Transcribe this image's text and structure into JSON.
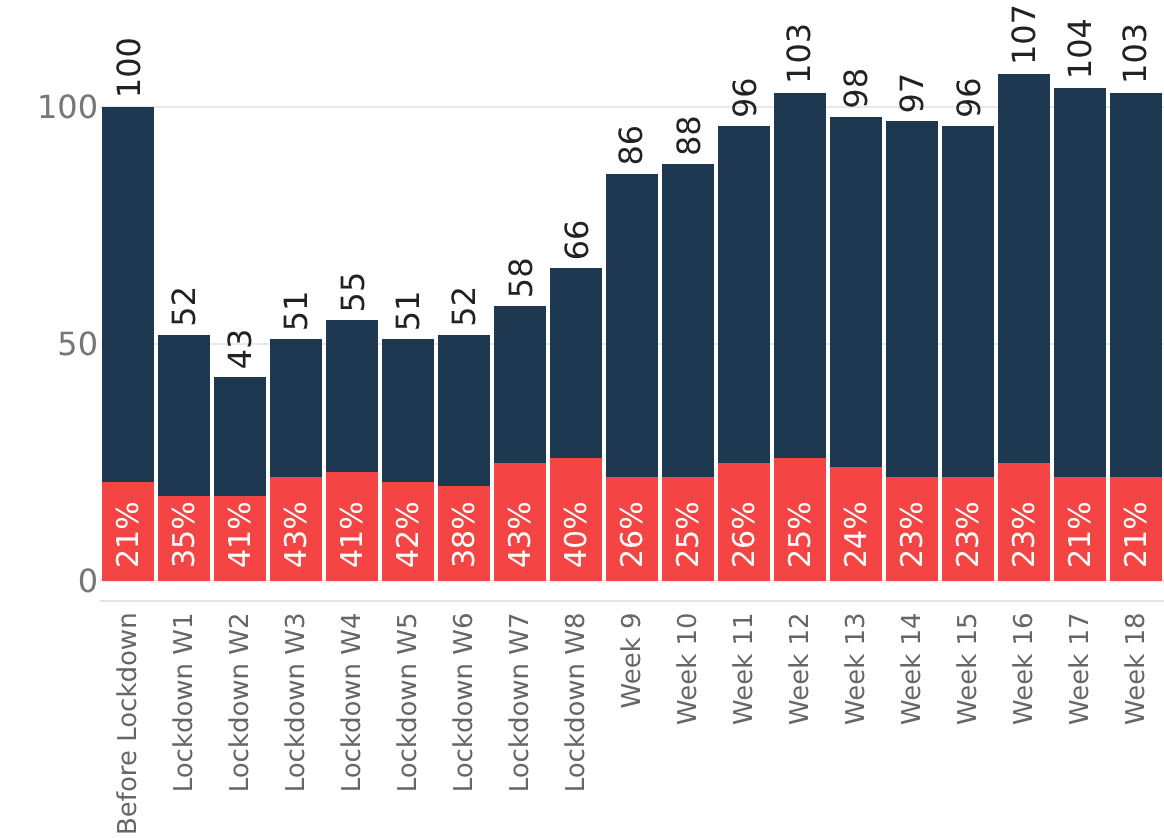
{
  "chart_data": {
    "type": "bar",
    "stacked": true,
    "categories": [
      "Before Lockdown",
      "Lockdown W1",
      "Lockdown W2",
      "Lockdown W3",
      "Lockdown W4",
      "Lockdown W5",
      "Lockdown W6",
      "Lockdown W7",
      "Lockdown W8",
      "Week 9",
      "Week 10",
      "Week 11",
      "Week 12",
      "Week 13",
      "Week 14",
      "Week 15",
      "Week 16",
      "Week 17",
      "Week 18"
    ],
    "series": [
      {
        "color": "#f44444",
        "values": [
          21,
          18,
          18,
          22,
          23,
          21,
          20,
          25,
          26,
          22,
          22,
          25,
          26,
          24,
          22,
          22,
          25,
          22,
          22
        ]
      },
      {
        "color": "#1e3851",
        "values": [
          79,
          34,
          25,
          29,
          32,
          30,
          32,
          33,
          40,
          64,
          66,
          71,
          77,
          74,
          75,
          74,
          82,
          82,
          81
        ]
      }
    ],
    "annotations": [
      {
        "text": "21%",
        "x": "Before Lockdown",
        "y": 0
      },
      {
        "text": "35%",
        "x": "Lockdown W1",
        "y": 0
      },
      {
        "text": "41%",
        "x": "Lockdown W2",
        "y": 0
      },
      {
        "text": "43%",
        "x": "Lockdown W3",
        "y": 0
      },
      {
        "text": "41%",
        "x": "Lockdown W4",
        "y": 0
      },
      {
        "text": "42%",
        "x": "Lockdown W5",
        "y": 0
      },
      {
        "text": "38%",
        "x": "Lockdown W6",
        "y": 0
      },
      {
        "text": "43%",
        "x": "Lockdown W7",
        "y": 0
      },
      {
        "text": "40%",
        "x": "Lockdown W8",
        "y": 0
      },
      {
        "text": "26%",
        "x": "Week 9",
        "y": 0
      },
      {
        "text": "25%",
        "x": "Week 10",
        "y": 0
      },
      {
        "text": "26%",
        "x": "Week 11",
        "y": 0
      },
      {
        "text": "25%",
        "x": "Week 12",
        "y": 0
      },
      {
        "text": "24%",
        "x": "Week 13",
        "y": 0
      },
      {
        "text": "23%",
        "x": "Week 14",
        "y": 0
      },
      {
        "text": "23%",
        "x": "Week 15",
        "y": 0
      },
      {
        "text": "23%",
        "x": "Week 16",
        "y": 0
      },
      {
        "text": "21%",
        "x": "Week 17",
        "y": 0
      },
      {
        "text": "21%",
        "x": "Week 18",
        "y": 0
      }
    ],
    "totals": [
      "100",
      "52",
      "43",
      "51",
      "55",
      "51",
      "52",
      "58",
      "66",
      "86",
      "88",
      "96",
      "103",
      "98",
      "97",
      "96",
      "107",
      "104",
      "103"
    ],
    "ylim": [
      -4,
      107
    ],
    "yticks": [
      0,
      50,
      100
    ],
    "grid": "y"
  }
}
